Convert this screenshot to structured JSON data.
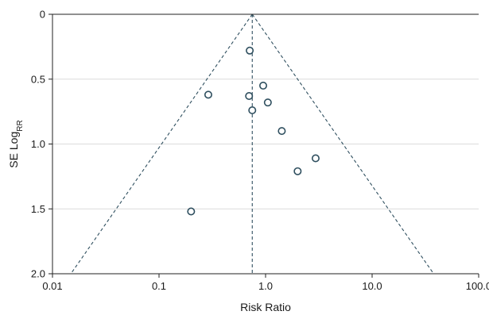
{
  "chart_data": {
    "type": "scatter",
    "title": "",
    "xlabel": "Risk Ratio",
    "ylabel_main": "SE Log",
    "ylabel_sub": "RR",
    "x_scale": "log",
    "xlim": [
      0.01,
      100
    ],
    "ylim": [
      0,
      2.0
    ],
    "y_inverted": true,
    "x_ticks": [
      0.01,
      0.1,
      1.0,
      10.0,
      100.0
    ],
    "x_tick_labels": [
      "0.01",
      "0.1",
      "1.0",
      "10.0",
      "100.0"
    ],
    "y_ticks": [
      0,
      0.5,
      1.0,
      1.5,
      2.0
    ],
    "y_tick_labels": [
      "0",
      "0.5",
      "1.0",
      "1.5",
      "2.0"
    ],
    "grid": "horizontal",
    "pooled_estimate": 0.75,
    "funnel_ci_multiplier": 1.96,
    "points": [
      {
        "x": 0.71,
        "y": 0.28
      },
      {
        "x": 0.95,
        "y": 0.55
      },
      {
        "x": 0.29,
        "y": 0.62
      },
      {
        "x": 0.7,
        "y": 0.63
      },
      {
        "x": 1.05,
        "y": 0.68
      },
      {
        "x": 0.75,
        "y": 0.74
      },
      {
        "x": 1.42,
        "y": 0.9
      },
      {
        "x": 2.95,
        "y": 1.11
      },
      {
        "x": 2.0,
        "y": 1.21
      },
      {
        "x": 0.2,
        "y": 1.52
      }
    ],
    "colors": {
      "marker": "#2f4f5f",
      "grid": "#dcdcdc",
      "axis": "#222222"
    }
  }
}
